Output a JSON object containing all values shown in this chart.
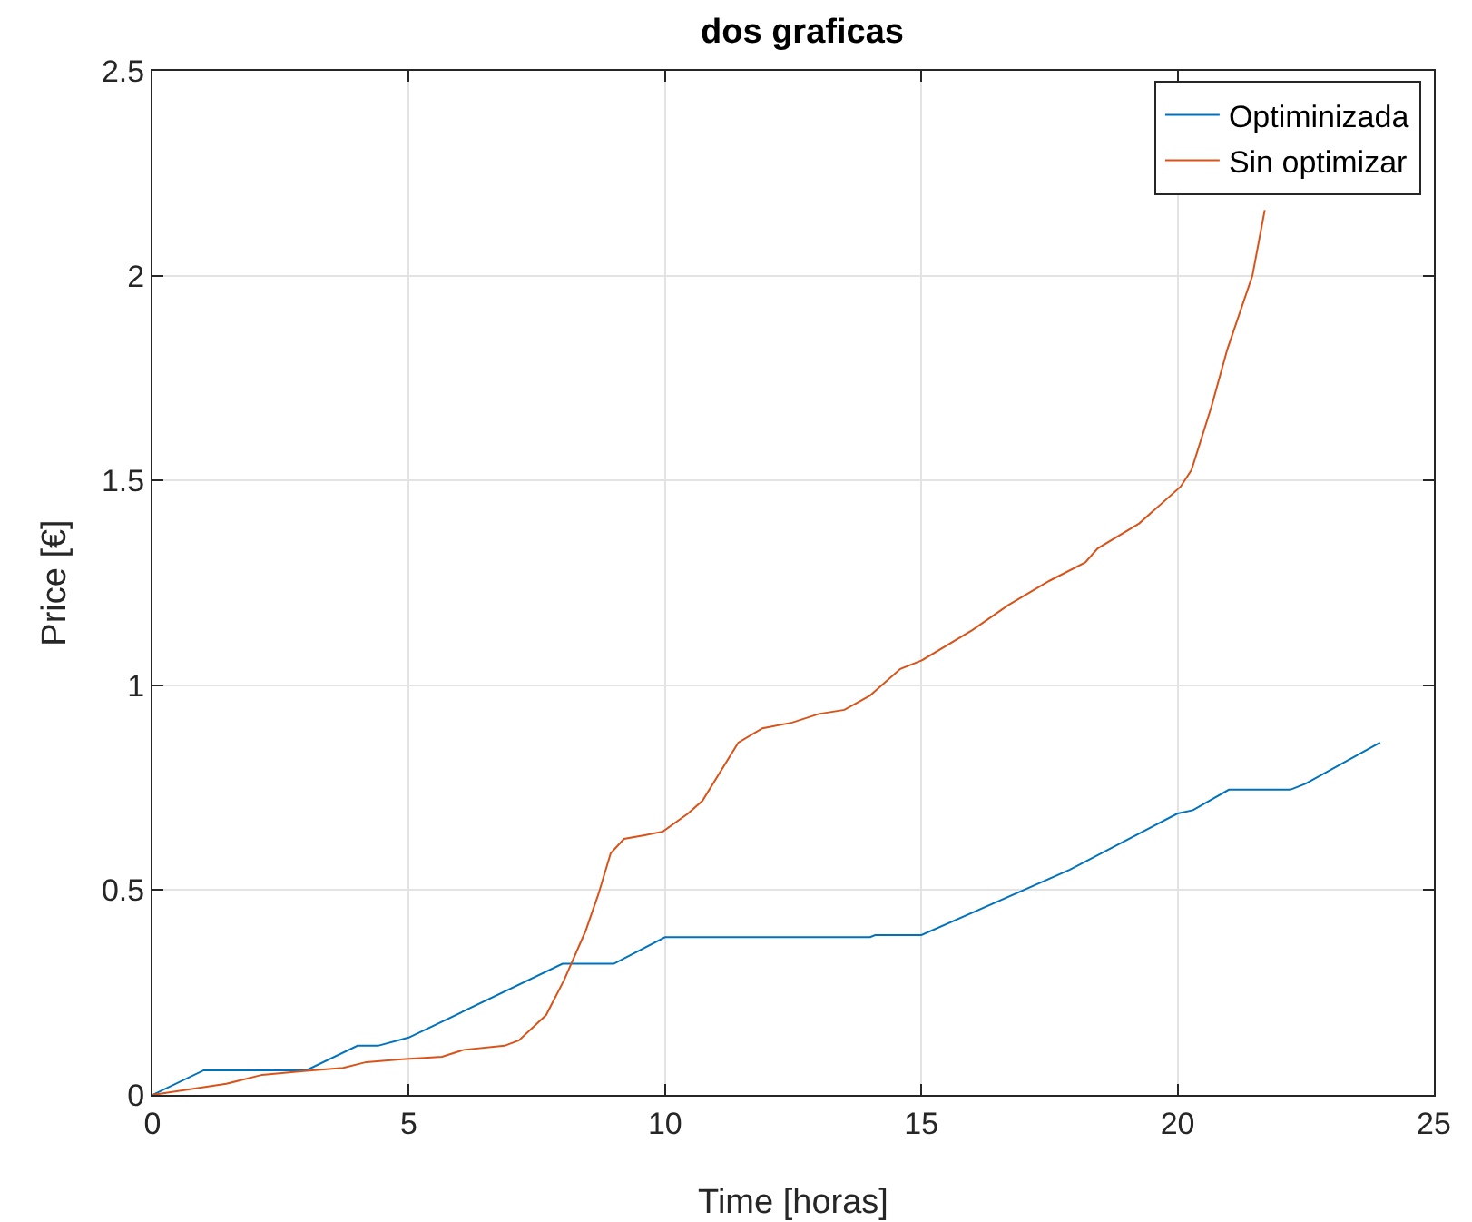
{
  "chart_data": {
    "type": "line",
    "title": "dos graficas",
    "xlabel": "Time [horas]",
    "ylabel": "Price [€]",
    "xlim": [
      0,
      25
    ],
    "xticks": [
      0,
      5,
      10,
      15,
      20,
      25
    ],
    "ylim": [
      0,
      2.5
    ],
    "yticks": [
      0,
      {
        "value": 0.5,
        "label": "0.5"
      },
      1,
      {
        "value": 1.5,
        "label": "1.5"
      },
      2,
      {
        "value": 2.5,
        "label": "2.5"
      }
    ],
    "grid": true,
    "legend": "top right",
    "line_style": "solid",
    "marker": "none",
    "series": [
      {
        "name": "Optiminizada",
        "color": "#0072bd",
        "x": [
          0,
          1,
          3,
          4,
          4.4,
          5,
          8,
          9,
          10,
          14,
          14.1,
          15,
          17.9,
          20,
          20.3,
          21,
          22.2,
          22.5,
          23.95
        ],
        "values": [
          0,
          0.06,
          0.06,
          0.12,
          0.12,
          0.14,
          0.32,
          0.32,
          0.385,
          0.385,
          0.39,
          0.39,
          0.55,
          0.687,
          0.695,
          0.745,
          0.745,
          0.76,
          0.86
        ]
      },
      {
        "name": "Sin optimizar",
        "color": "#d95319",
        "x": [
          0,
          1.44,
          2.14,
          2.95,
          3.72,
          4.17,
          4.87,
          5.65,
          6.07,
          6.87,
          7.15,
          7.68,
          8.03,
          8.45,
          8.7,
          8.94,
          9.2,
          9.6,
          9.96,
          10.45,
          10.73,
          11.43,
          11.9,
          12.48,
          13,
          13.5,
          14,
          14.59,
          15,
          16,
          16.7,
          17.5,
          18.2,
          18.44,
          19.25,
          20.06,
          20.27,
          20.66,
          20.97,
          21.46,
          21.7
        ],
        "values": [
          0,
          0.027,
          0.049,
          0.058,
          0.066,
          0.08,
          0.087,
          0.093,
          0.11,
          0.12,
          0.133,
          0.195,
          0.28,
          0.4,
          0.49,
          0.59,
          0.625,
          0.634,
          0.643,
          0.687,
          0.718,
          0.86,
          0.895,
          0.909,
          0.93,
          0.94,
          0.975,
          1.04,
          1.06,
          1.135,
          1.196,
          1.255,
          1.3,
          1.334,
          1.395,
          1.485,
          1.525,
          1.68,
          1.82,
          2.0,
          2.16
        ]
      }
    ]
  }
}
